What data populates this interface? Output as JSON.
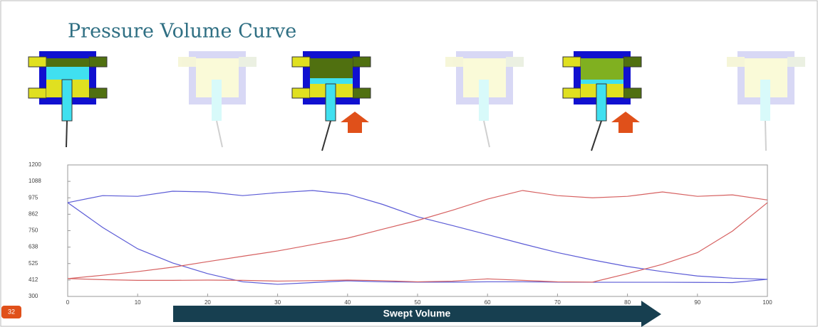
{
  "slide_number": "32",
  "chart_data": {
    "type": "line",
    "title": "Pressure Volume Curve",
    "x_label": "Swept Volume",
    "x": [
      0,
      5,
      10,
      15,
      20,
      25,
      30,
      35,
      40,
      45,
      50,
      55,
      60,
      65,
      70,
      75,
      80,
      85,
      90,
      95,
      100
    ],
    "series": [
      {
        "color": "#5b5bd6",
        "values": [
          942,
          990,
          985,
          1020,
          1015,
          990,
          1010,
          1025,
          1000,
          930,
          845,
          785,
          723,
          660,
          600,
          550,
          505,
          470,
          440,
          425,
          417
        ]
      },
      {
        "color": "#5b5bd6",
        "values": [
          942,
          772,
          626,
          529,
          456,
          400,
          383,
          395,
          407,
          400,
          398,
          398,
          400,
          400,
          398,
          397,
          397,
          397,
          396,
          395,
          417
        ]
      },
      {
        "color": "#d66060",
        "values": [
          422,
          415,
          410,
          410,
          412,
          410,
          405,
          408,
          412,
          408,
          400,
          405,
          420,
          410,
          400,
          398,
          456,
          520,
          600,
          747,
          942
        ]
      },
      {
        "color": "#d66060",
        "values": [
          422,
          445,
          470,
          500,
          538,
          575,
          611,
          655,
          699,
          760,
          820,
          890,
          966,
          1025,
          990,
          975,
          985,
          1015,
          985,
          995,
          960
        ]
      }
    ],
    "xlim": [
      0,
      100
    ],
    "xticks": [
      0,
      10,
      20,
      30,
      40,
      50,
      60,
      70,
      80,
      90,
      100
    ],
    "ylim": [
      300,
      1200
    ],
    "yticks": [
      300,
      {
        "value": 412.5,
        "label": "412"
      },
      525,
      {
        "value": 637.5,
        "label": "638"
      },
      750,
      {
        "value": 862.5,
        "label": "862"
      },
      975,
      {
        "value": 1087.5,
        "label": "1088"
      },
      1200
    ]
  }
}
